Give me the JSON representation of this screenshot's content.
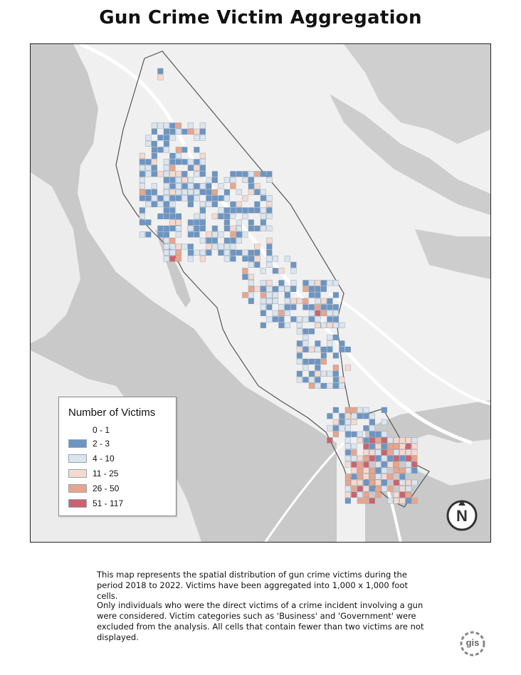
{
  "title": "Gun Crime Victim Aggregation",
  "legend": {
    "title": "Number of Victims",
    "classes": [
      {
        "label": "0 - 1",
        "color": "none"
      },
      {
        "label": "2 - 3",
        "color": "#6b95c4"
      },
      {
        "label": "4 - 10",
        "color": "#dbe5ef"
      },
      {
        "label": "11 - 25",
        "color": "#f6d9cf"
      },
      {
        "label": "26 - 50",
        "color": "#e9a58b"
      },
      {
        "label": "51 - 117",
        "color": "#c9636f"
      }
    ]
  },
  "north_arrow": {
    "letter": "N"
  },
  "description": {
    "paragraph_1": "This map represents the spatial distribution of gun crime victims during the period 2018 to 2022. Victims have been aggregated into 1,000 x 1,000 foot cells.",
    "paragraph_2": "Only individuals who were the direct victims of a crime incident involving a gun were considered. Victim categories such as 'Business' and 'Government' were excluded from the analysis. All cells that contain fewer than two victims are not displayed."
  },
  "logo": {
    "text": "gis"
  },
  "colors": {
    "basemap_land": "#f0f0f0",
    "basemap_water": "#c9c9c9",
    "roads": "#ffffff",
    "boundary": "#555555"
  }
}
